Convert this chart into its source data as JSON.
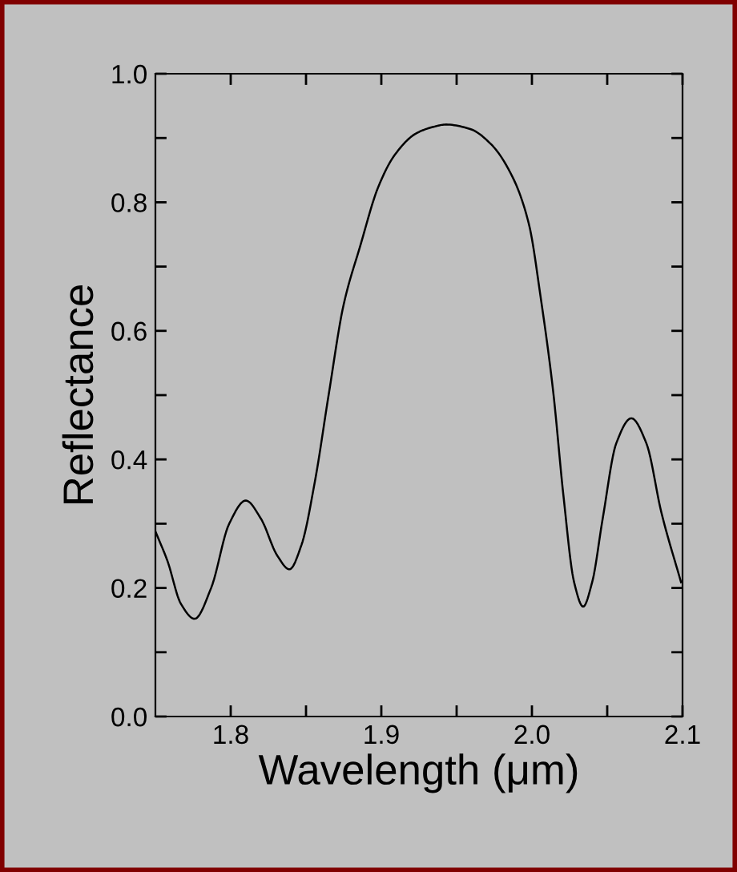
{
  "chart_data": {
    "type": "line",
    "xlabel": "Wavelength (μm)",
    "ylabel": "Reflectance",
    "xlim": [
      1.75,
      2.1
    ],
    "ylim": [
      0.0,
      1.0
    ],
    "xticks": [
      1.8,
      {
        "value": 1.85,
        "label": null
      },
      1.9,
      {
        "value": 1.95,
        "label": null
      },
      {
        "value": 2.0,
        "label": "2.0"
      },
      {
        "value": 2.05,
        "label": null
      },
      2.1
    ],
    "yticks": [
      {
        "value": 0.0,
        "label": "0.0"
      },
      {
        "value": 0.1,
        "label": null
      },
      0.2,
      {
        "value": 0.3,
        "label": null
      },
      0.4,
      {
        "value": 0.5,
        "label": null
      },
      0.6,
      {
        "value": 0.7,
        "label": null
      },
      0.8,
      {
        "value": 0.9,
        "label": null
      },
      {
        "value": 1.0,
        "label": "1.0"
      }
    ],
    "grid": false,
    "legend": false,
    "marker": "none",
    "line_style": "solid",
    "series": [
      {
        "color": "#000000",
        "x": [
          1.75,
          1.758,
          1.767,
          1.776,
          1.787,
          1.799,
          1.81,
          1.82,
          1.831,
          1.839,
          1.847,
          1.856,
          1.865,
          1.875,
          1.886,
          1.898,
          1.909,
          1.923,
          1.934,
          1.943,
          1.959,
          1.973,
          1.987,
          1.998,
          2.006,
          2.014,
          2.021,
          2.028,
          2.034,
          2.04,
          2.047,
          2.056,
          2.066,
          2.076,
          2.086,
          2.099
        ],
        "values": [
          0.288,
          0.242,
          0.175,
          0.152,
          0.2,
          0.3,
          0.336,
          0.308,
          0.25,
          0.229,
          0.267,
          0.367,
          0.5,
          0.641,
          0.732,
          0.824,
          0.874,
          0.907,
          0.917,
          0.921,
          0.914,
          0.89,
          0.84,
          0.766,
          0.649,
          0.508,
          0.342,
          0.209,
          0.171,
          0.209,
          0.308,
          0.425,
          0.464,
          0.425,
          0.317,
          0.209
        ]
      }
    ]
  }
}
